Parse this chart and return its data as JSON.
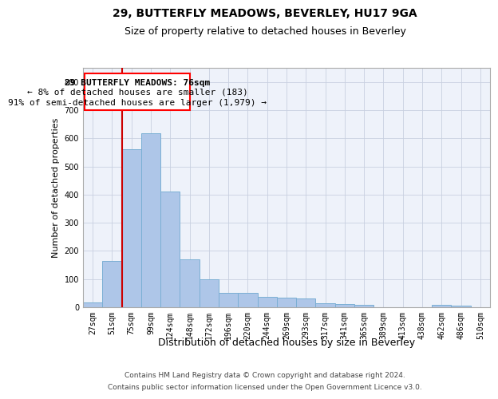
{
  "title_line1": "29, BUTTERFLY MEADOWS, BEVERLEY, HU17 9GA",
  "title_line2": "Size of property relative to detached houses in Beverley",
  "xlabel": "Distribution of detached houses by size in Beverley",
  "ylabel": "Number of detached properties",
  "footer_line1": "Contains HM Land Registry data © Crown copyright and database right 2024.",
  "footer_line2": "Contains public sector information licensed under the Open Government Licence v3.0.",
  "bar_labels": [
    "27sqm",
    "51sqm",
    "75sqm",
    "99sqm",
    "124sqm",
    "148sqm",
    "172sqm",
    "196sqm",
    "220sqm",
    "244sqm",
    "269sqm",
    "293sqm",
    "317sqm",
    "341sqm",
    "365sqm",
    "389sqm",
    "413sqm",
    "438sqm",
    "462sqm",
    "486sqm",
    "510sqm"
  ],
  "bar_values": [
    18,
    163,
    560,
    617,
    410,
    170,
    100,
    50,
    50,
    38,
    35,
    30,
    14,
    10,
    8,
    0,
    0,
    0,
    8,
    5,
    0
  ],
  "bar_color": "#aec6e8",
  "bar_edge_color": "#7bafd4",
  "vline_color": "#cc0000",
  "ylim": [
    0,
    850
  ],
  "yticks": [
    0,
    100,
    200,
    300,
    400,
    500,
    600,
    700,
    800
  ],
  "grid_color": "#c8d0e0",
  "bg_color": "#eef2fa",
  "annotation_text_line1": "29 BUTTERFLY MEADOWS: 76sqm",
  "annotation_text_line2": "← 8% of detached houses are smaller (183)",
  "annotation_text_line3": "91% of semi-detached houses are larger (1,979) →",
  "title1_fontsize": 10,
  "title2_fontsize": 9,
  "ylabel_fontsize": 8,
  "xlabel_fontsize": 9,
  "annotation_fontsize": 8,
  "footer_fontsize": 6.5,
  "tick_fontsize": 7
}
